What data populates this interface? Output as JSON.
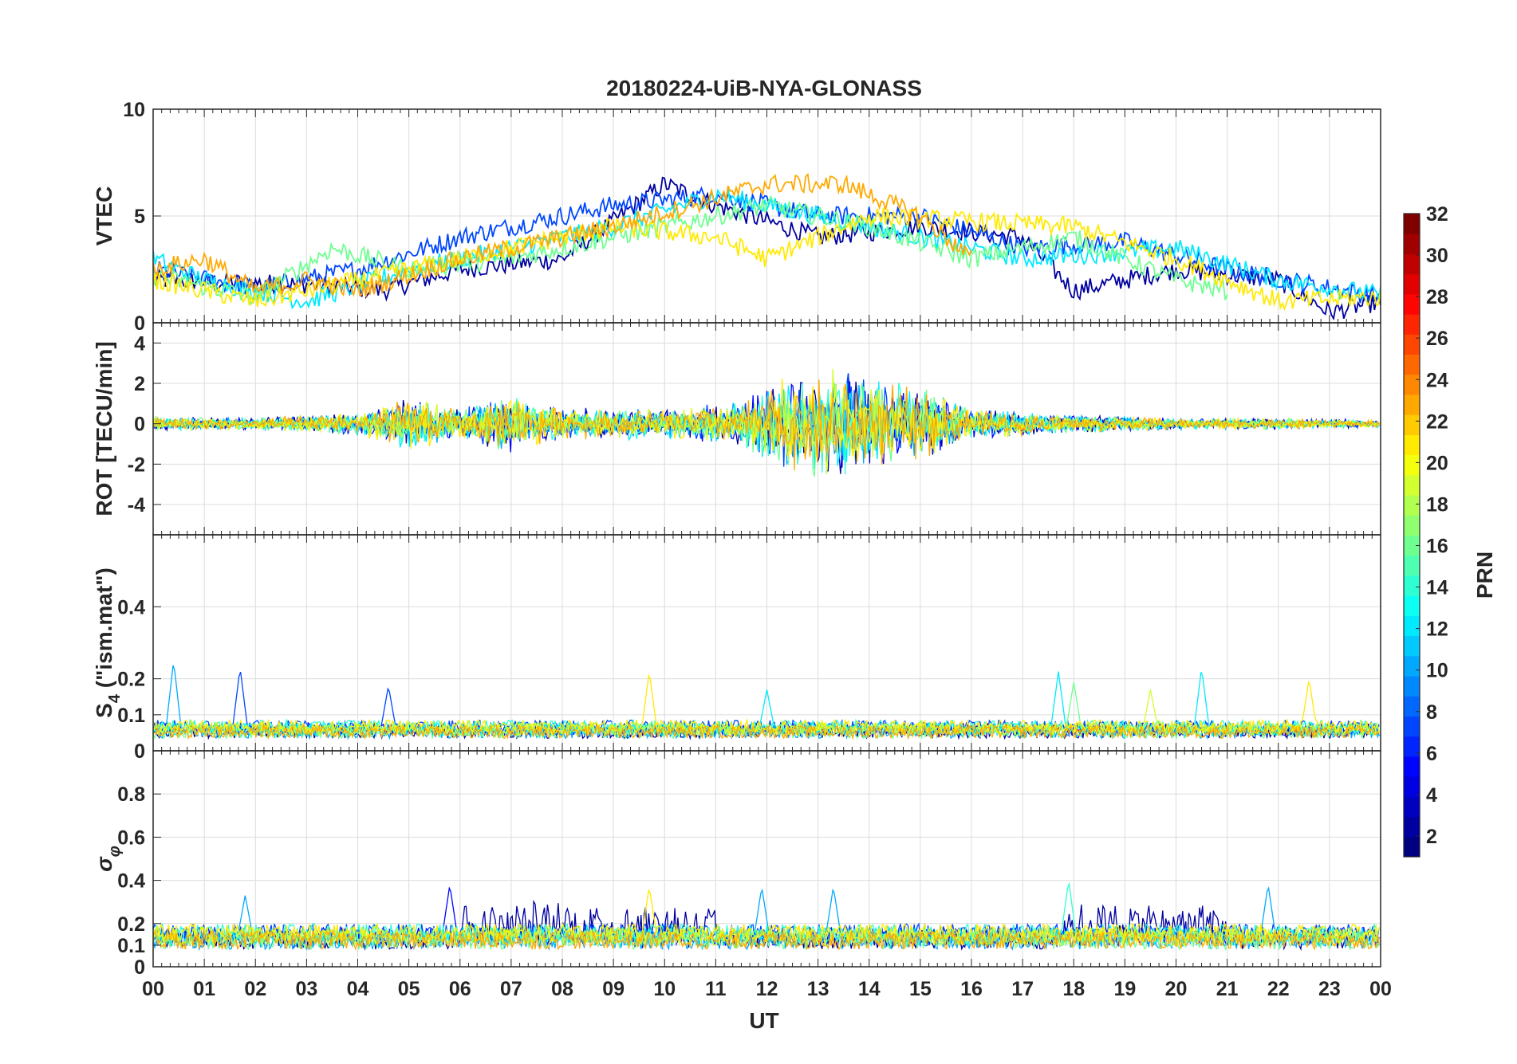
{
  "chart_data": {
    "type": "line",
    "title": "20180224-UiB-NYA-GLONASS",
    "xlabel": "UT",
    "x_ticks": [
      "00",
      "01",
      "02",
      "03",
      "04",
      "05",
      "06",
      "07",
      "08",
      "09",
      "10",
      "11",
      "12",
      "13",
      "14",
      "15",
      "16",
      "17",
      "18",
      "19",
      "20",
      "21",
      "22",
      "23",
      "00"
    ],
    "x_range_hours": [
      0,
      24
    ],
    "colorbar": {
      "label": "PRN",
      "range": [
        1,
        32
      ],
      "ticks": [
        "2",
        "4",
        "6",
        "8",
        "10",
        "12",
        "14",
        "16",
        "18",
        "20",
        "22",
        "24",
        "26",
        "28",
        "30",
        "32"
      ],
      "colormap": "jet"
    },
    "panels": [
      {
        "name": "vtec",
        "ylabel": "VTEC",
        "ylim": [
          0,
          10
        ],
        "y_ticks": [
          0,
          5,
          10
        ],
        "y_tick_labels": [
          "0",
          "5",
          "10"
        ],
        "description_series": [
          {
            "prn": 2,
            "mean_profile": [
              [
                0,
                2.0
              ],
              [
                3,
                1.8
              ],
              [
                4.5,
                1.5
              ],
              [
                6,
                2.5
              ],
              [
                8,
                3.0
              ],
              [
                10,
                6.5
              ],
              [
                11,
                5.5
              ],
              [
                13,
                4.0
              ],
              [
                15,
                4.5
              ],
              [
                17,
                4.0
              ],
              [
                18,
                1.5
              ],
              [
                20,
                2.5
              ],
              [
                22,
                2.0
              ],
              [
                23,
                0.5
              ],
              [
                24,
                1.0
              ]
            ]
          },
          {
            "prn": 7,
            "mean_profile": [
              [
                0,
                2.5
              ],
              [
                2,
                1.6
              ],
              [
                4,
                2.5
              ],
              [
                6,
                4.0
              ],
              [
                9,
                5.5
              ],
              [
                11,
                6.0
              ],
              [
                13,
                5.0
              ],
              [
                15,
                5.0
              ],
              [
                17,
                3.5
              ],
              [
                19,
                3.8
              ],
              [
                21,
                2.5
              ],
              [
                24,
                1.2
              ]
            ]
          },
          {
            "prn": 12,
            "mean_profile": [
              [
                0,
                3.0
              ],
              [
                1,
                2.0
              ],
              [
                3,
                1.0
              ],
              [
                5,
                2.5
              ],
              [
                7,
                3.5
              ],
              [
                9,
                4.5
              ],
              [
                11,
                6.0
              ],
              [
                13,
                5.0
              ],
              [
                15,
                4.0
              ],
              [
                17,
                3.0
              ],
              [
                20,
                3.5
              ],
              [
                22,
                2.0
              ],
              [
                24,
                1.3
              ]
            ]
          },
          {
            "prn": 16,
            "mean_profile": [
              [
                0,
                2.2
              ],
              [
                2,
                1.2
              ],
              [
                3.5,
                3.5
              ],
              [
                5,
                2.5
              ],
              [
                7,
                3.0
              ],
              [
                9,
                4.0
              ],
              [
                12,
                5.5
              ],
              [
                14,
                4.5
              ],
              [
                16,
                3.0
              ],
              [
                18,
                4.0
              ],
              [
                20,
                2.0
              ],
              [
                21,
                1.5
              ]
            ]
          },
          {
            "prn": 21,
            "mean_profile": [
              [
                0,
                2.0
              ],
              [
                2,
                1.0
              ],
              [
                4,
                2.0
              ],
              [
                7,
                3.5
              ],
              [
                9,
                4.5
              ],
              [
                11,
                4.0
              ],
              [
                12,
                3.0
              ],
              [
                14,
                5.0
              ],
              [
                18,
                4.5
              ],
              [
                20,
                3.0
              ],
              [
                22,
                1.0
              ],
              [
                24,
                1.2
              ]
            ]
          },
          {
            "prn": 23,
            "mean_profile": [
              [
                0,
                2.5
              ],
              [
                1,
                3.0
              ],
              [
                2,
                1.5
              ],
              [
                3,
                2.0
              ],
              [
                4,
                1.5
              ],
              [
                6,
                3.0
              ],
              [
                9,
                4.5
              ],
              [
                12,
                6.5
              ],
              [
                13.5,
                6.5
              ],
              [
                15,
                5.0
              ],
              [
                16,
                3.0
              ]
            ]
          }
        ]
      },
      {
        "name": "rot",
        "ylabel": "ROT [TECU/min]",
        "ylim": [
          -5.5,
          5
        ],
        "y_ticks": [
          -4,
          -2,
          0,
          2,
          4
        ],
        "y_tick_labels": [
          "-4",
          "-2",
          "0",
          "2",
          "4"
        ],
        "amplitude_envelope": [
          [
            0,
            0.4
          ],
          [
            2,
            0.3
          ],
          [
            4,
            0.6
          ],
          [
            5,
            1.5
          ],
          [
            6,
            0.8
          ],
          [
            7,
            1.5
          ],
          [
            8,
            0.8
          ],
          [
            10,
            0.8
          ],
          [
            11.5,
            1.2
          ],
          [
            12,
            2.0
          ],
          [
            13,
            3.0
          ],
          [
            14,
            2.5
          ],
          [
            15,
            2.0
          ],
          [
            16,
            0.8
          ],
          [
            18,
            0.5
          ],
          [
            20,
            0.3
          ],
          [
            22,
            0.3
          ],
          [
            24,
            0.2
          ]
        ]
      },
      {
        "name": "s4",
        "ylabel_main": "S",
        "ylabel_sub": "4",
        "ylabel_rest": " (\"ism.mat\")",
        "ylim": [
          0,
          0.6
        ],
        "y_ticks": [
          0,
          0.1,
          0.2,
          0.4
        ],
        "y_tick_labels": [
          "0",
          "0.1",
          "0.2",
          "0.4"
        ],
        "baseline": 0.06,
        "peaks": [
          [
            0.4,
            0.25
          ],
          [
            1.7,
            0.23
          ],
          [
            4.6,
            0.18
          ],
          [
            9.7,
            0.22
          ],
          [
            12,
            0.17
          ],
          [
            17.7,
            0.22
          ],
          [
            18,
            0.19
          ],
          [
            19.5,
            0.17
          ],
          [
            20.5,
            0.23
          ],
          [
            22.6,
            0.2
          ]
        ]
      },
      {
        "name": "sigma_phi",
        "ylabel_main": "σ",
        "ylabel_sub": "φ",
        "ylim": [
          0,
          1
        ],
        "y_ticks": [
          0,
          0.1,
          0.2,
          0.4,
          0.6,
          0.8
        ],
        "y_tick_labels": [
          "0",
          "0.1",
          "0.2",
          "0.4",
          "0.6",
          "0.8"
        ],
        "baseline": 0.14,
        "peaks": [
          [
            1.8,
            0.33
          ],
          [
            5.8,
            0.38
          ],
          [
            9.7,
            0.37
          ],
          [
            11.9,
            0.37
          ],
          [
            13.3,
            0.37
          ],
          [
            17.9,
            0.4
          ],
          [
            21.8,
            0.38
          ]
        ]
      }
    ]
  }
}
